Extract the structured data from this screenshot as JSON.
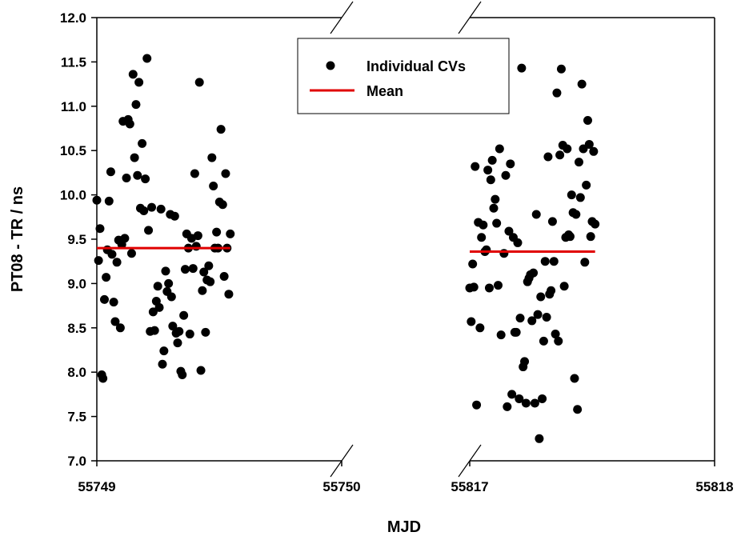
{
  "chart_data": {
    "type": "scatter",
    "xlabel": "MJD",
    "ylabel": "PT08 - TR / ns",
    "ylim": [
      7.0,
      12.0
    ],
    "yticks": [
      "7.0",
      "7.5",
      "8.0",
      "8.5",
      "9.0",
      "9.5",
      "10.0",
      "10.5",
      "11.0",
      "11.5",
      "12.0"
    ],
    "broken_x_axis": true,
    "segments": [
      {
        "xlim": [
          55749,
          55750
        ],
        "xticks": [
          "55749",
          "55750"
        ]
      },
      {
        "xlim": [
          55817,
          55818
        ],
        "xticks": [
          "55817",
          "55818"
        ]
      }
    ],
    "legend": {
      "position": "top-center",
      "entries": [
        "Individual CVs",
        "Mean"
      ]
    },
    "grid": false,
    "colors": {
      "points": "#000000",
      "mean": "#e00000"
    },
    "series": [
      {
        "name": "Individual CVs",
        "type": "scatter",
        "points": [
          [
            55749.0,
            9.94
          ],
          [
            55749.007,
            9.26
          ],
          [
            55749.013,
            9.62
          ],
          [
            55749.02,
            7.97
          ],
          [
            55749.025,
            7.93
          ],
          [
            55749.031,
            8.82
          ],
          [
            55749.038,
            9.07
          ],
          [
            55749.043,
            9.38
          ],
          [
            55749.05,
            9.93
          ],
          [
            55749.057,
            10.26
          ],
          [
            55749.062,
            9.33
          ],
          [
            55749.069,
            8.79
          ],
          [
            55749.075,
            8.57
          ],
          [
            55749.082,
            9.24
          ],
          [
            55749.089,
            9.49
          ],
          [
            55749.096,
            8.5
          ],
          [
            55749.102,
            9.44
          ],
          [
            55749.107,
            10.83
          ],
          [
            55749.114,
            9.51
          ],
          [
            55749.121,
            10.19
          ],
          [
            55749.128,
            10.85
          ],
          [
            55749.135,
            10.8
          ],
          [
            55749.142,
            9.34
          ],
          [
            55749.148,
            11.36
          ],
          [
            55749.154,
            10.42
          ],
          [
            55749.16,
            11.02
          ],
          [
            55749.166,
            10.22
          ],
          [
            55749.172,
            11.27
          ],
          [
            55749.178,
            9.85
          ],
          [
            55749.185,
            10.58
          ],
          [
            55749.192,
            9.82
          ],
          [
            55749.198,
            10.18
          ],
          [
            55749.205,
            11.54
          ],
          [
            55749.211,
            9.6
          ],
          [
            55749.218,
            8.46
          ],
          [
            55749.224,
            9.86
          ],
          [
            55749.23,
            8.68
          ],
          [
            55749.236,
            8.47
          ],
          [
            55749.243,
            8.8
          ],
          [
            55749.249,
            8.97
          ],
          [
            55749.255,
            8.73
          ],
          [
            55749.262,
            9.84
          ],
          [
            55749.268,
            8.09
          ],
          [
            55749.274,
            8.24
          ],
          [
            55749.281,
            9.14
          ],
          [
            55749.287,
            8.91
          ],
          [
            55749.293,
            9.0
          ],
          [
            55749.3,
            9.78
          ],
          [
            55749.305,
            8.85
          ],
          [
            55749.31,
            8.52
          ],
          [
            55749.318,
            9.76
          ],
          [
            55749.324,
            8.44
          ],
          [
            55749.33,
            8.33
          ],
          [
            55749.336,
            8.46
          ],
          [
            55749.343,
            8.01
          ],
          [
            55749.349,
            7.97
          ],
          [
            55749.355,
            8.64
          ],
          [
            55749.361,
            9.16
          ],
          [
            55749.367,
            9.56
          ],
          [
            55749.374,
            9.4
          ],
          [
            55749.38,
            8.43
          ],
          [
            55749.387,
            9.51
          ],
          [
            55749.393,
            9.17
          ],
          [
            55749.4,
            10.24
          ],
          [
            55749.406,
            9.42
          ],
          [
            55749.413,
            9.54
          ],
          [
            55749.419,
            11.27
          ],
          [
            55749.425,
            8.02
          ],
          [
            55749.431,
            8.92
          ],
          [
            55749.437,
            9.13
          ],
          [
            55749.444,
            8.45
          ],
          [
            55749.45,
            9.04
          ],
          [
            55749.457,
            9.2
          ],
          [
            55749.463,
            9.02
          ],
          [
            55749.47,
            10.42
          ],
          [
            55749.476,
            10.1
          ],
          [
            55749.482,
            9.4
          ],
          [
            55749.489,
            9.58
          ],
          [
            55749.495,
            9.4
          ],
          [
            55749.501,
            9.92
          ],
          [
            55749.507,
            10.74
          ],
          [
            55749.514,
            9.89
          ],
          [
            55749.52,
            9.08
          ],
          [
            55749.526,
            10.24
          ],
          [
            55749.532,
            9.4
          ],
          [
            55749.539,
            8.88
          ],
          [
            55749.545,
            9.56
          ],
          [
            55817.0,
            8.95
          ],
          [
            55817.006,
            8.57
          ],
          [
            55817.012,
            9.22
          ],
          [
            55817.017,
            8.96
          ],
          [
            55817.022,
            10.32
          ],
          [
            55817.028,
            7.63
          ],
          [
            55817.035,
            9.69
          ],
          [
            55817.042,
            8.5
          ],
          [
            55817.048,
            9.52
          ],
          [
            55817.055,
            9.66
          ],
          [
            55817.062,
            9.36
          ],
          [
            55817.068,
            9.38
          ],
          [
            55817.074,
            10.28
          ],
          [
            55817.08,
            8.95
          ],
          [
            55817.086,
            10.17
          ],
          [
            55817.092,
            10.39
          ],
          [
            55817.098,
            9.85
          ],
          [
            55817.104,
            9.95
          ],
          [
            55817.11,
            9.68
          ],
          [
            55817.116,
            8.98
          ],
          [
            55817.122,
            10.52
          ],
          [
            55817.128,
            8.42
          ],
          [
            55817.134,
            11.45
          ],
          [
            55817.14,
            9.34
          ],
          [
            55817.147,
            10.22
          ],
          [
            55817.153,
            7.61
          ],
          [
            55817.16,
            9.59
          ],
          [
            55817.166,
            10.35
          ],
          [
            55817.172,
            7.75
          ],
          [
            55817.178,
            9.52
          ],
          [
            55817.184,
            8.45
          ],
          [
            55817.19,
            8.45
          ],
          [
            55817.196,
            9.46
          ],
          [
            55817.202,
            7.7
          ],
          [
            55817.206,
            8.61
          ],
          [
            55817.212,
            11.43
          ],
          [
            55817.218,
            8.06
          ],
          [
            55817.224,
            8.12
          ],
          [
            55817.23,
            7.65
          ],
          [
            55817.236,
            9.02
          ],
          [
            55817.242,
            9.06
          ],
          [
            55817.248,
            9.1
          ],
          [
            55817.254,
            8.58
          ],
          [
            55817.26,
            9.12
          ],
          [
            55817.266,
            7.65
          ],
          [
            55817.272,
            9.78
          ],
          [
            55817.278,
            8.65
          ],
          [
            55817.284,
            7.25
          ],
          [
            55817.29,
            8.85
          ],
          [
            55817.296,
            7.7
          ],
          [
            55817.302,
            8.35
          ],
          [
            55817.308,
            9.25
          ],
          [
            55817.314,
            8.62
          ],
          [
            55817.32,
            10.43
          ],
          [
            55817.326,
            8.88
          ],
          [
            55817.332,
            8.92
          ],
          [
            55817.338,
            9.7
          ],
          [
            55817.344,
            9.25
          ],
          [
            55817.35,
            8.43
          ],
          [
            55817.356,
            11.15
          ],
          [
            55817.362,
            8.35
          ],
          [
            55817.368,
            10.45
          ],
          [
            55817.374,
            11.42
          ],
          [
            55817.38,
            10.56
          ],
          [
            55817.386,
            8.97
          ],
          [
            55817.392,
            9.52
          ],
          [
            55817.398,
            10.52
          ],
          [
            55817.404,
            9.55
          ],
          [
            55817.41,
            9.53
          ],
          [
            55817.416,
            10.0
          ],
          [
            55817.422,
            9.8
          ],
          [
            55817.428,
            7.93
          ],
          [
            55817.434,
            9.78
          ],
          [
            55817.44,
            7.58
          ],
          [
            55817.446,
            10.37
          ],
          [
            55817.452,
            9.97
          ],
          [
            55817.458,
            11.25
          ],
          [
            55817.464,
            10.52
          ],
          [
            55817.47,
            9.24
          ],
          [
            55817.476,
            10.11
          ],
          [
            55817.482,
            10.84
          ],
          [
            55817.488,
            10.57
          ],
          [
            55817.494,
            9.53
          ],
          [
            55817.5,
            9.7
          ],
          [
            55817.506,
            10.49
          ],
          [
            55817.512,
            9.67
          ]
        ]
      },
      {
        "name": "Mean",
        "type": "line",
        "segments": [
          {
            "x": [
              55749.0,
              55749.545
            ],
            "y": [
              9.4,
              9.4
            ]
          },
          {
            "x": [
              55817.0,
              55817.512
            ],
            "y": [
              9.36,
              9.36
            ]
          }
        ]
      }
    ]
  }
}
